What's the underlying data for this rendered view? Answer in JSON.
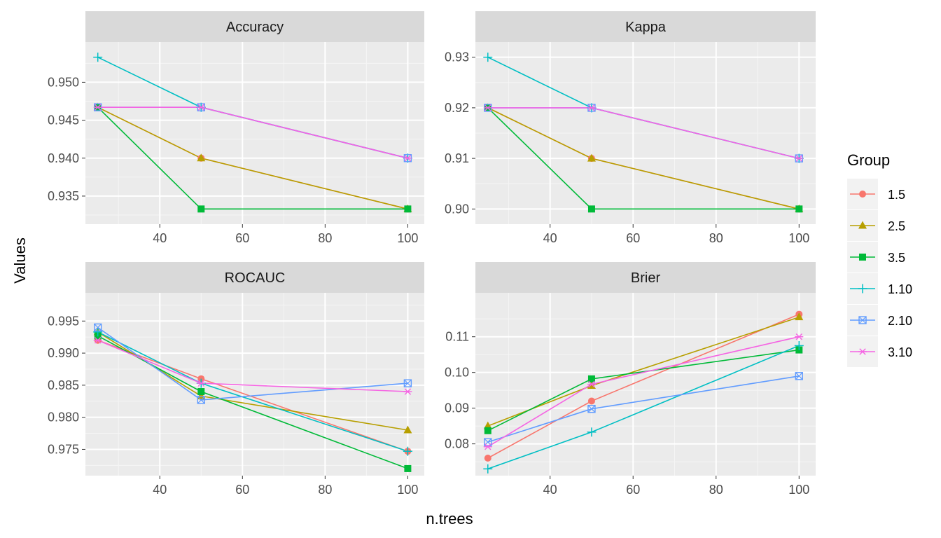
{
  "chart_data": {
    "type": "line",
    "xlabel": "n.trees",
    "ylabel": "Values",
    "legend": {
      "title": "Group",
      "placement": "right",
      "entries": [
        {
          "label": "1.5",
          "color": "#F8766D",
          "shape": "circle"
        },
        {
          "label": "2.5",
          "color": "#B79F00",
          "shape": "triangle"
        },
        {
          "label": "3.5",
          "color": "#00BA38",
          "shape": "square"
        },
        {
          "label": "1.10",
          "color": "#00BFC4",
          "shape": "plus"
        },
        {
          "label": "2.10",
          "color": "#619CFF",
          "shape": "square-cross"
        },
        {
          "label": "3.10",
          "color": "#F564E3",
          "shape": "asterisk"
        }
      ]
    },
    "grid": true,
    "facets": [
      {
        "title": "Accuracy",
        "xlim": [
          22,
          104
        ],
        "ylim": [
          0.9313,
          0.9553
        ],
        "xticks": [
          40,
          60,
          80,
          100
        ],
        "yticks": [
          0.935,
          0.94,
          0.945,
          0.95
        ],
        "ytick_labels": [
          "0.935",
          "0.940",
          "0.945",
          "0.950"
        ],
        "x": [
          25,
          50,
          100
        ],
        "series": [
          {
            "name": "1.5",
            "values": [
              0.9467,
              0.94,
              0.9333
            ]
          },
          {
            "name": "2.5",
            "values": [
              0.9467,
              0.94,
              0.9333
            ]
          },
          {
            "name": "3.5",
            "values": [
              0.9467,
              0.9333,
              0.9333
            ]
          },
          {
            "name": "1.10",
            "values": [
              0.9533,
              0.9467,
              0.94
            ]
          },
          {
            "name": "2.10",
            "values": [
              0.9467,
              0.9467,
              0.94
            ]
          },
          {
            "name": "3.10",
            "values": [
              0.9467,
              0.9467,
              0.94
            ]
          }
        ]
      },
      {
        "title": "Kappa",
        "xlim": [
          22,
          104
        ],
        "ylim": [
          0.897,
          0.933
        ],
        "xticks": [
          40,
          60,
          80,
          100
        ],
        "yticks": [
          0.9,
          0.91,
          0.92,
          0.93
        ],
        "ytick_labels": [
          "0.90",
          "0.91",
          "0.92",
          "0.93"
        ],
        "x": [
          25,
          50,
          100
        ],
        "series": [
          {
            "name": "1.5",
            "values": [
              0.92,
              0.91,
              0.9
            ]
          },
          {
            "name": "2.5",
            "values": [
              0.92,
              0.91,
              0.9
            ]
          },
          {
            "name": "3.5",
            "values": [
              0.92,
              0.9,
              0.9
            ]
          },
          {
            "name": "1.10",
            "values": [
              0.93,
              0.92,
              0.91
            ]
          },
          {
            "name": "2.10",
            "values": [
              0.92,
              0.92,
              0.91
            ]
          },
          {
            "name": "3.10",
            "values": [
              0.92,
              0.92,
              0.91
            ]
          }
        ]
      },
      {
        "title": "ROCAUC",
        "xlim": [
          22,
          104
        ],
        "ylim": [
          0.9709,
          0.9994
        ],
        "xticks": [
          40,
          60,
          80,
          100
        ],
        "yticks": [
          0.975,
          0.98,
          0.985,
          0.99,
          0.995
        ],
        "ytick_labels": [
          "0.975",
          "0.980",
          "0.985",
          "0.990",
          "0.995"
        ],
        "x": [
          25,
          50,
          100
        ],
        "series": [
          {
            "name": "1.5",
            "values": [
              0.992,
              0.986,
              0.9747
            ]
          },
          {
            "name": "2.5",
            "values": [
              0.9933,
              0.9833,
              0.978
            ]
          },
          {
            "name": "3.5",
            "values": [
              0.9927,
              0.984,
              0.972
            ]
          },
          {
            "name": "1.10",
            "values": [
              0.9933,
              0.9853,
              0.9747
            ]
          },
          {
            "name": "2.10",
            "values": [
              0.994,
              0.9827,
              0.9853
            ]
          },
          {
            "name": "3.10",
            "values": [
              0.992,
              0.9853,
              0.984
            ]
          }
        ]
      },
      {
        "title": "Brier",
        "xlim": [
          22,
          104
        ],
        "ylim": [
          0.0711,
          0.1223
        ],
        "xticks": [
          40,
          60,
          80,
          100
        ],
        "yticks": [
          0.08,
          0.09,
          0.1,
          0.11
        ],
        "ytick_labels": [
          "0.08",
          "0.09",
          "0.10",
          "0.11"
        ],
        "x": [
          25,
          50,
          100
        ],
        "series": [
          {
            "name": "1.5",
            "values": [
              0.076,
              0.092,
              0.1163
            ]
          },
          {
            "name": "2.5",
            "values": [
              0.085,
              0.0963,
              0.1155
            ]
          },
          {
            "name": "3.5",
            "values": [
              0.0837,
              0.0982,
              0.1063
            ]
          },
          {
            "name": "1.10",
            "values": [
              0.073,
              0.0833,
              0.1075
            ]
          },
          {
            "name": "2.10",
            "values": [
              0.0805,
              0.0898,
              0.099
            ]
          },
          {
            "name": "3.10",
            "values": [
              0.0792,
              0.0967,
              0.11
            ]
          }
        ]
      }
    ]
  }
}
